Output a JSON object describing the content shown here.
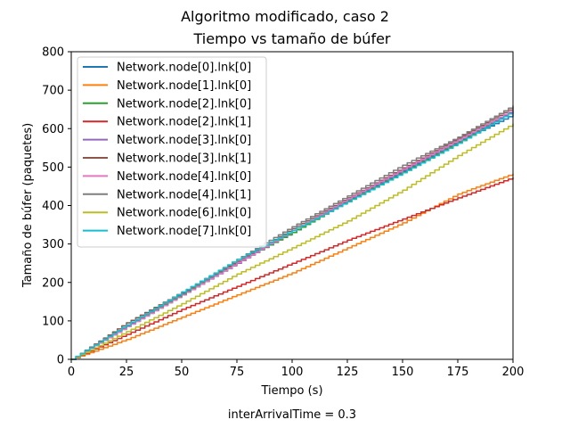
{
  "chart_data": {
    "type": "line",
    "suptitle": "Algoritmo modificado, caso 2",
    "title": "Tiempo vs tamaño de búfer",
    "xlabel": "Tiempo (s)",
    "ylabel": "Tamaño de búfer (paquetes)",
    "caption": "interArrivalTime = 0.3",
    "xlim": [
      0,
      200
    ],
    "ylim": [
      0,
      800
    ],
    "xticks": [
      0,
      25,
      50,
      75,
      100,
      125,
      150,
      175,
      200
    ],
    "yticks": [
      0,
      100,
      200,
      300,
      400,
      500,
      600,
      700,
      800
    ],
    "grid": false,
    "legend_position": "top-left",
    "series": [
      {
        "name": "Network.node[0].lnk[0]",
        "color": "#1f77b4",
        "x": [
          0,
          25,
          50,
          75,
          100,
          125,
          150,
          175,
          200
        ],
        "y": [
          0,
          88,
          172,
          255,
          330,
          415,
          490,
          565,
          637
        ]
      },
      {
        "name": "Network.node[1].lnk[0]",
        "color": "#ff7f0e",
        "x": [
          0,
          25,
          50,
          75,
          100,
          125,
          150,
          175,
          200
        ],
        "y": [
          0,
          52,
          110,
          168,
          225,
          290,
          355,
          430,
          483
        ]
      },
      {
        "name": "Network.node[2].lnk[0]",
        "color": "#2ca02c",
        "x": [
          0,
          25,
          50,
          75,
          100,
          125,
          150,
          175,
          200
        ],
        "y": [
          0,
          85,
          168,
          252,
          330,
          412,
          487,
          565,
          645
        ]
      },
      {
        "name": "Network.node[2].lnk[1]",
        "color": "#d62728",
        "x": [
          0,
          25,
          50,
          75,
          100,
          125,
          150,
          175,
          200
        ],
        "y": [
          0,
          65,
          130,
          190,
          250,
          310,
          365,
          420,
          473
        ]
      },
      {
        "name": "Network.node[3].lnk[0]",
        "color": "#9467bd",
        "x": [
          0,
          25,
          50,
          75,
          100,
          125,
          150,
          175,
          200
        ],
        "y": [
          0,
          85,
          168,
          250,
          335,
          415,
          492,
          568,
          648
        ]
      },
      {
        "name": "Network.node[3].lnk[1]",
        "color": "#8c564b",
        "x": [
          0,
          25,
          50,
          75,
          100,
          125,
          150,
          175,
          200
        ],
        "y": [
          0,
          95,
          175,
          255,
          340,
          420,
          498,
          575,
          655
        ]
      },
      {
        "name": "Network.node[4].lnk[0]",
        "color": "#e377c2",
        "x": [
          0,
          25,
          50,
          75,
          100,
          125,
          150,
          175,
          200
        ],
        "y": [
          0,
          85,
          168,
          252,
          335,
          418,
          495,
          572,
          650
        ]
      },
      {
        "name": "Network.node[4].lnk[1]",
        "color": "#7f7f7f",
        "x": [
          0,
          25,
          50,
          75,
          100,
          125,
          150,
          175,
          200
        ],
        "y": [
          0,
          90,
          170,
          260,
          345,
          425,
          505,
          578,
          660
        ]
      },
      {
        "name": "Network.node[6].lnk[0]",
        "color": "#bcbd22",
        "x": [
          0,
          25,
          50,
          75,
          100,
          125,
          150,
          175,
          200
        ],
        "y": [
          0,
          72,
          145,
          222,
          290,
          360,
          440,
          530,
          613
        ]
      },
      {
        "name": "Network.node[7].lnk[0]",
        "color": "#17becf",
        "x": [
          0,
          25,
          50,
          75,
          100,
          125,
          150,
          175,
          200
        ],
        "y": [
          0,
          90,
          175,
          260,
          335,
          410,
          485,
          562,
          645
        ]
      }
    ]
  }
}
